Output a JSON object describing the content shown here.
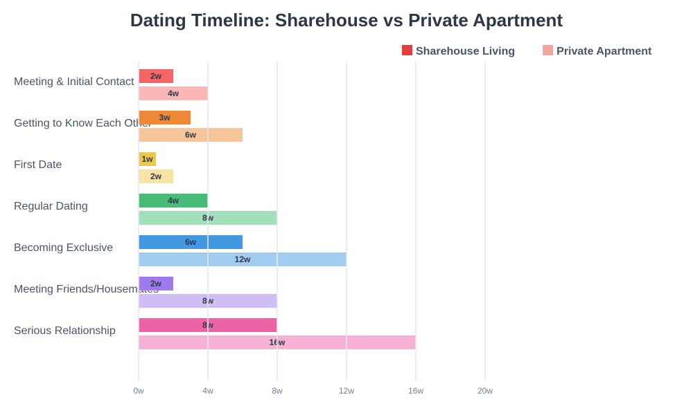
{
  "chart_data": {
    "type": "hbar",
    "title": "Dating Timeline: Sharehouse vs Private Apartment",
    "categories": [
      "Meeting & Initial Contact",
      "Getting to Know Each Other",
      "First Date",
      "Regular Dating",
      "Becoming Exclusive",
      "Meeting Friends/Housemates",
      "Serious Relationship"
    ],
    "series": [
      {
        "name": "Sharehouse Living",
        "color": "#e53e3e",
        "colors": [
          "#f56565",
          "#ed8936",
          "#ecc94b",
          "#48bb78",
          "#4299e1",
          "#9f7aea",
          "#ed64a6"
        ],
        "values": [
          2,
          3,
          1,
          4,
          6,
          2,
          8
        ],
        "value_labels": [
          "2w",
          "3w",
          "1w",
          "4w",
          "6w",
          "2w",
          "8w"
        ]
      },
      {
        "name": "Private Apartment",
        "color": "#f4a3a3",
        "colors": [
          "#fbb6b6",
          "#f6c59a",
          "#f6e3a5",
          "#a4dfbc",
          "#a1ccf0",
          "#cfbdf5",
          "#f6b2d3"
        ],
        "values": [
          4,
          6,
          2,
          8,
          12,
          8,
          16
        ],
        "value_labels": [
          "4w",
          "6w",
          "2w",
          "8w",
          "12w",
          "8w",
          "16w"
        ]
      }
    ],
    "xlim": [
      0,
      20
    ],
    "xticks": [
      {
        "value": 0,
        "label": "0w"
      },
      {
        "value": 4,
        "label": "4w"
      },
      {
        "value": 8,
        "label": "8w"
      },
      {
        "value": 12,
        "label": "12w"
      },
      {
        "value": 16,
        "label": "16w"
      },
      {
        "value": 20,
        "label": "20w"
      }
    ],
    "grid": true,
    "legend": "top-right"
  }
}
